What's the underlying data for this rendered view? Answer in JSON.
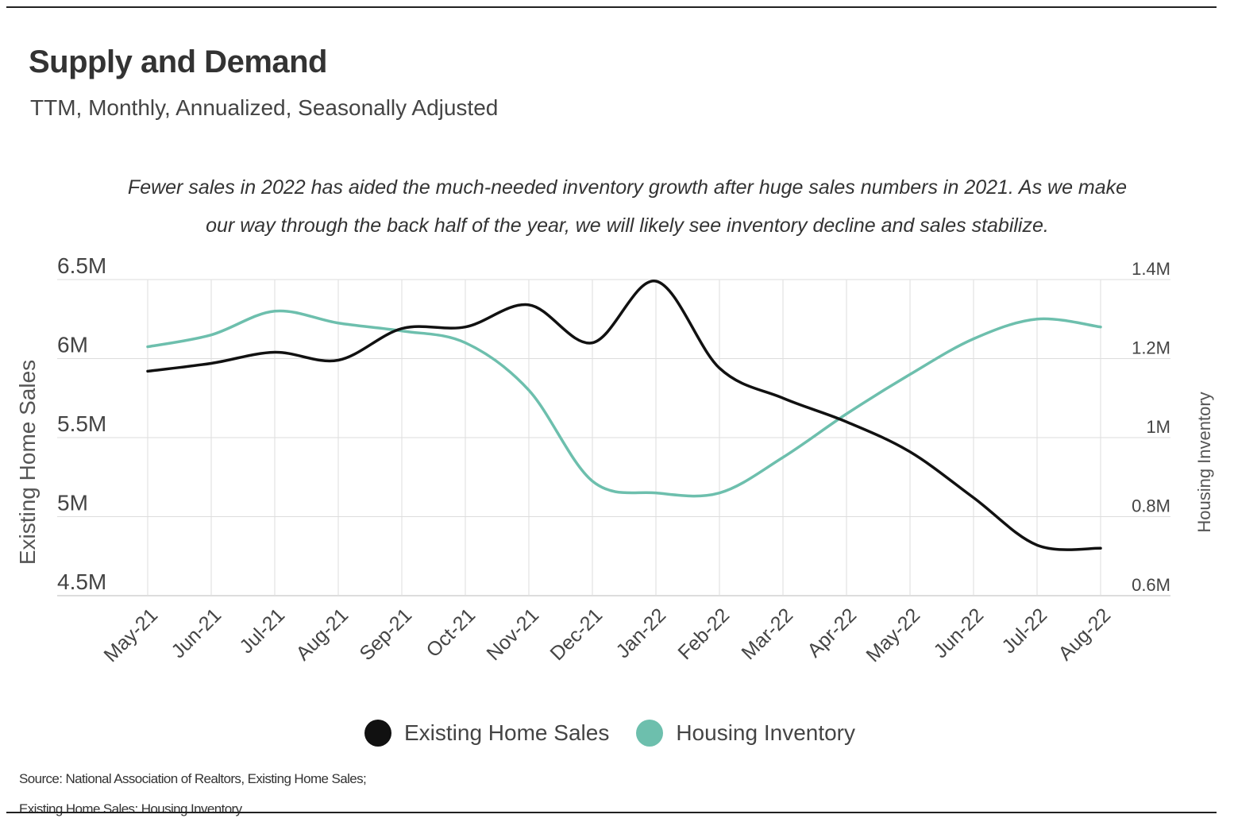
{
  "header": {
    "title": "Supply and Demand",
    "subtitle": "TTM, Monthly, Annualized, Seasonally Adjusted",
    "annotation": "Fewer sales in 2022 has aided the much-needed inventory growth after huge sales numbers in 2021. As we make our way through the back half of the year, we will likely see inventory decline and sales stabilize."
  },
  "source": {
    "line1": "Source:  National Association of Realtors, Existing Home Sales;",
    "line2": "Existing Home Sales: Housing Inventory"
  },
  "colors": {
    "sales": "#111111",
    "inventory": "#6dbfad",
    "grid": "#dddddd"
  },
  "chart_data": {
    "type": "line",
    "title": "Supply and Demand",
    "subtitle": "TTM, Monthly, Annualized, Seasonally Adjusted",
    "categories": [
      "May-21",
      "Jun-21",
      "Jul-21",
      "Aug-21",
      "Sep-21",
      "Oct-21",
      "Nov-21",
      "Dec-21",
      "Jan-22",
      "Feb-22",
      "Mar-22",
      "Apr-22",
      "May-22",
      "Jun-22",
      "Jul-22",
      "Aug-22"
    ],
    "ylabel_left": "Existing Home Sales",
    "ylabel_right": "Housing Inventory",
    "ylim_left": [
      4500000,
      6500000
    ],
    "ylim_right": [
      600000,
      1400000
    ],
    "yticks_left": [
      {
        "value": 4500000,
        "label": "4.5M"
      },
      {
        "value": 5000000,
        "label": "5M"
      },
      {
        "value": 5500000,
        "label": "5.5M"
      },
      {
        "value": 6000000,
        "label": "6M"
      },
      {
        "value": 6500000,
        "label": "6.5M"
      }
    ],
    "yticks_right": [
      {
        "value": 600000,
        "label": "0.6M"
      },
      {
        "value": 800000,
        "label": "0.8M"
      },
      {
        "value": 1000000,
        "label": "1M"
      },
      {
        "value": 1200000,
        "label": "1.2M"
      },
      {
        "value": 1400000,
        "label": "1.4M"
      }
    ],
    "grid": true,
    "legend": "bottom",
    "series": [
      {
        "name": "Existing Home Sales",
        "axis": "left",
        "color": "#111111",
        "values": [
          5920000,
          5970000,
          6040000,
          5990000,
          6190000,
          6200000,
          6340000,
          6100000,
          6490000,
          5940000,
          5750000,
          5600000,
          5410000,
          5120000,
          4820000,
          4800000
        ]
      },
      {
        "name": "Housing Inventory",
        "axis": "right",
        "color": "#6dbfad",
        "values": [
          1230000,
          1260000,
          1320000,
          1290000,
          1270000,
          1240000,
          1120000,
          890000,
          860000,
          860000,
          950000,
          1060000,
          1160000,
          1250000,
          1300000,
          1280000
        ]
      }
    ]
  }
}
